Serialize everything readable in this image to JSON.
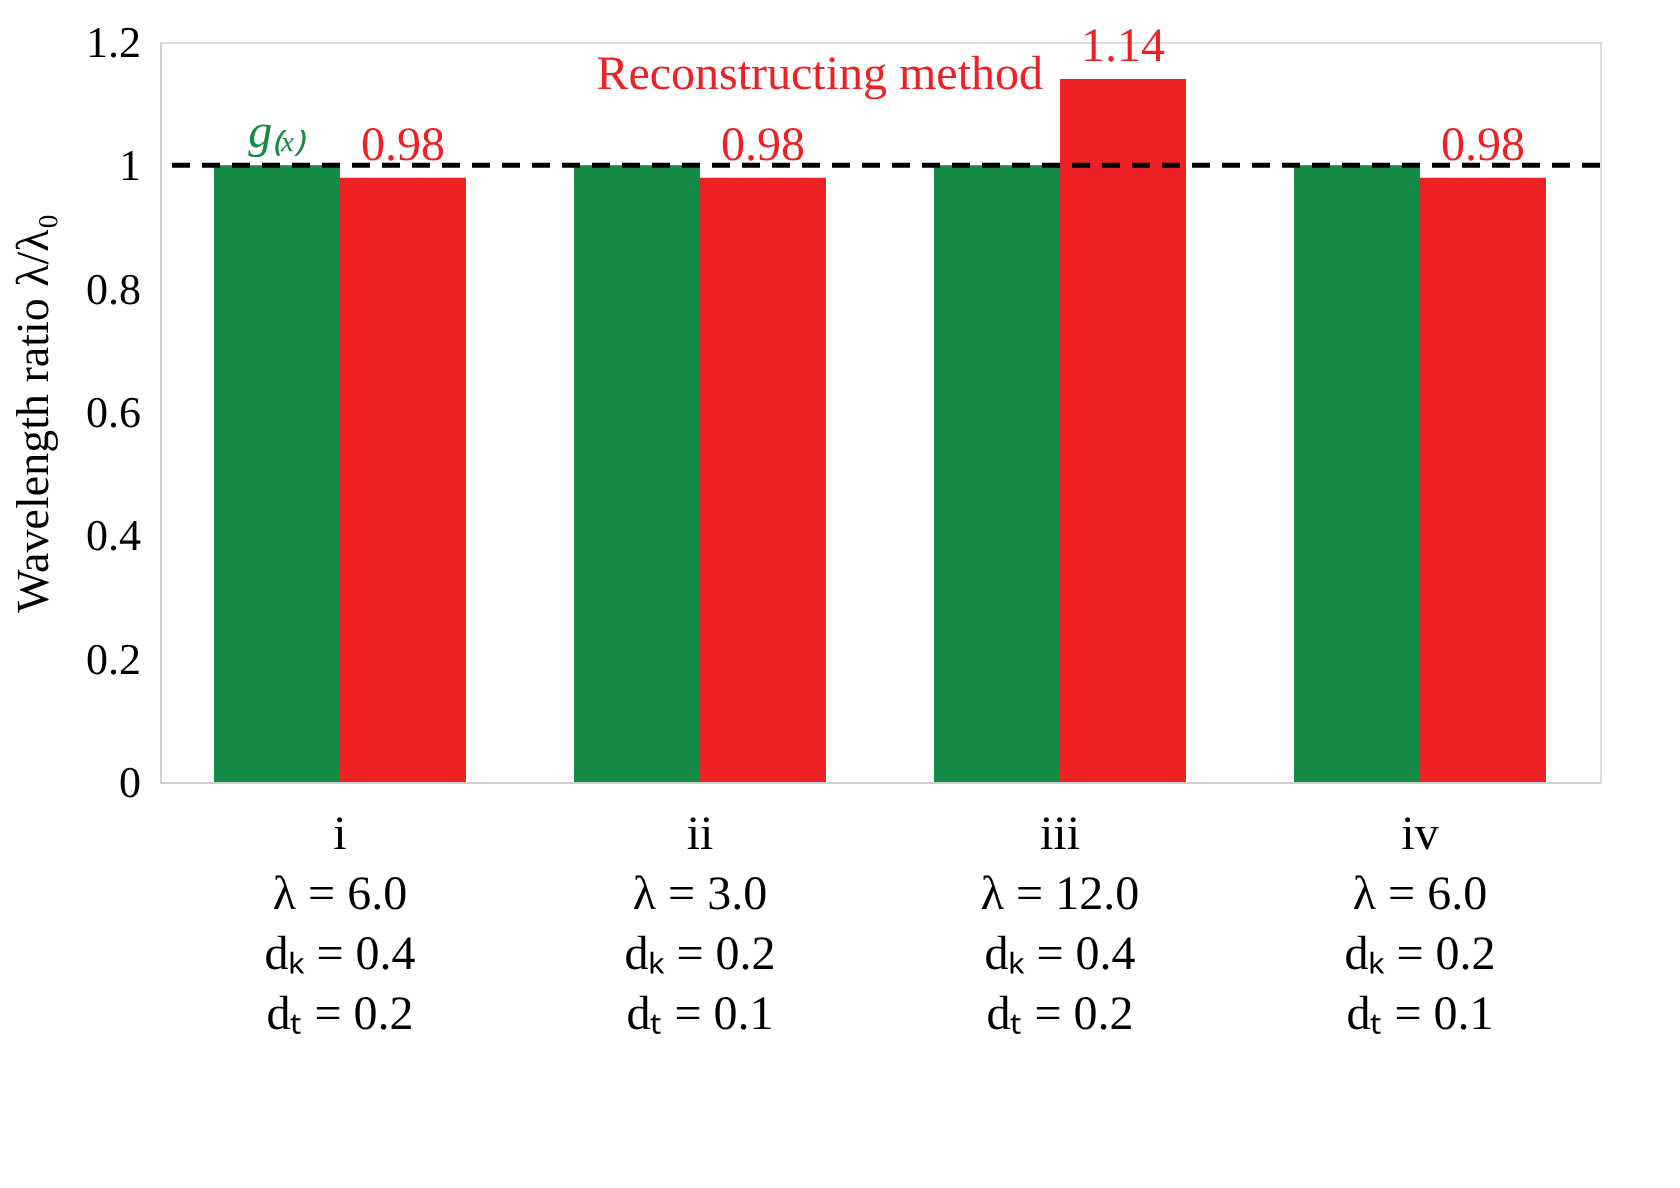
{
  "chart_data": {
    "type": "bar",
    "ylabel": "Wavelength ratio λ/λ₀",
    "categories": [
      "i\nλ = 6.0\ndₖ = 0.4\ndₜ = 0.2",
      "ii\nλ = 3.0\ndₖ = 0.2\ndₜ = 0.1",
      "iii\nλ = 12.0\ndₖ = 0.4\ndₜ = 0.2",
      "iv\nλ = 6.0\ndₖ = 0.2\ndₜ = 0.1"
    ],
    "series": [
      {
        "name": "g₍ₓ₎",
        "color": "#138a45",
        "values": [
          1.0,
          1.0,
          1.0,
          1.0
        ]
      },
      {
        "name": "Reconstructing method",
        "color": "#ee2224",
        "values": [
          0.98,
          0.98,
          1.14,
          0.98
        ],
        "value_labels": [
          "0.98",
          "0.98",
          "1.14",
          "0.98"
        ]
      }
    ],
    "ylim": [
      0,
      1.2
    ],
    "yticks": [
      0,
      0.2,
      0.4,
      0.6,
      0.8,
      1,
      1.2
    ],
    "ref_lines": [
      {
        "axis": "y",
        "value": 1,
        "color": "#000000",
        "line_style": "dashed"
      }
    ],
    "grid": false
  }
}
